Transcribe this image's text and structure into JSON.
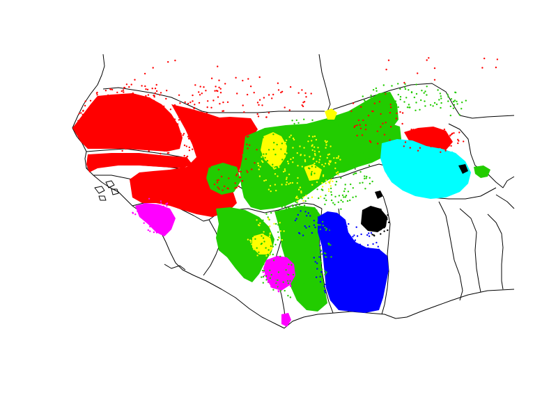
{
  "map": {
    "type": "point-distribution-map",
    "background": "#ffffff",
    "border_color": "#000000",
    "groups": [
      {
        "color": "#ff0000",
        "label": ""
      },
      {
        "color": "#22cc00",
        "label": ""
      },
      {
        "color": "#0000ff",
        "label": ""
      },
      {
        "color": "#00ffff",
        "label": ""
      },
      {
        "color": "#ffff00",
        "label": ""
      },
      {
        "color": "#ff00ff",
        "label": ""
      },
      {
        "color": "#000000",
        "label": ""
      }
    ]
  }
}
